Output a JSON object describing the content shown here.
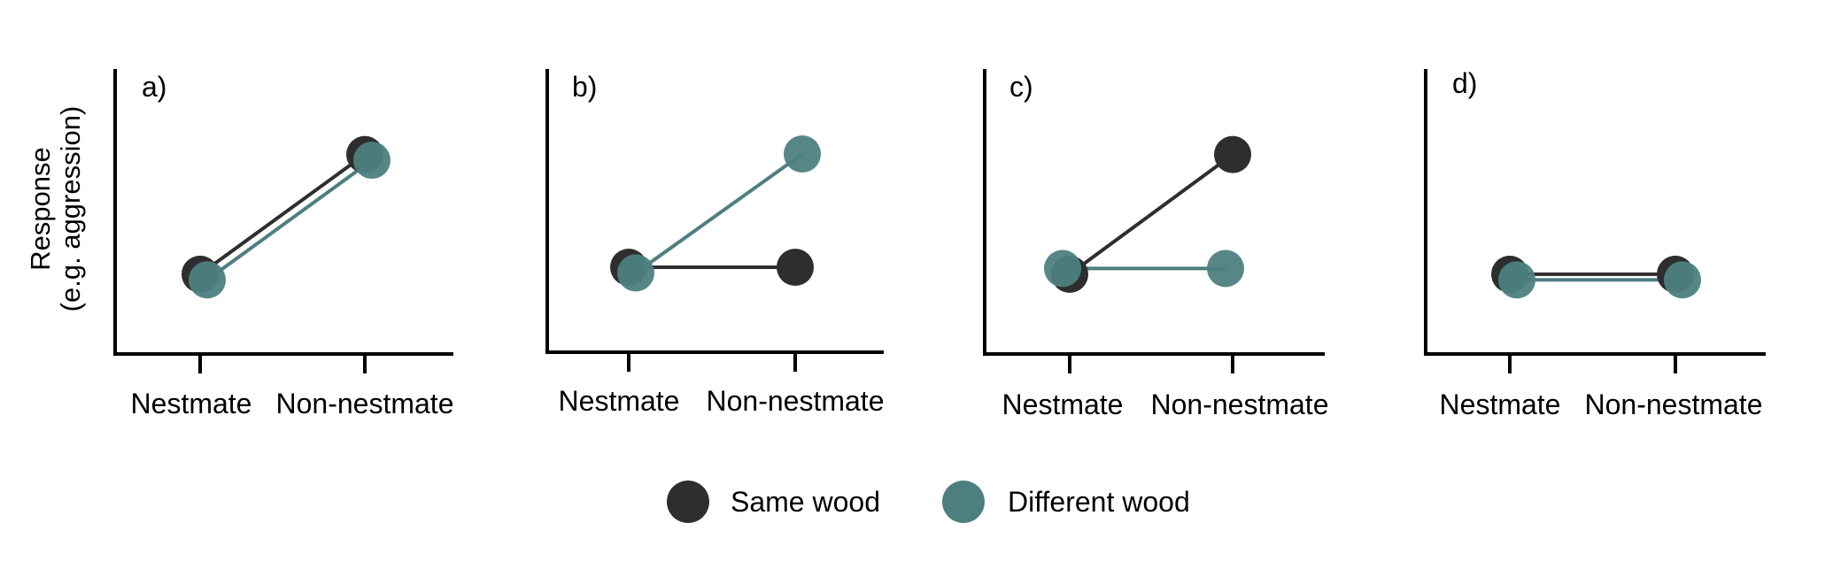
{
  "ylabel": [
    "Response",
    "(e.g. aggression)"
  ],
  "colors": {
    "same": "#2e2e2e",
    "different": "#4e7f80"
  },
  "legend": [
    {
      "key": "same",
      "label": "Same wood"
    },
    {
      "key": "different",
      "label": "Different wood"
    }
  ],
  "chart_data": [
    {
      "type": "line",
      "panel": "a)",
      "categories": [
        "Nestmate",
        "Non-nestmate"
      ],
      "ylim": [
        0,
        1
      ],
      "series": [
        {
          "name": "Same wood",
          "key": "same",
          "values": [
            0.28,
            0.7
          ]
        },
        {
          "name": "Different wood",
          "key": "different",
          "values": [
            0.26,
            0.68
          ]
        }
      ]
    },
    {
      "type": "line",
      "panel": "b)",
      "categories": [
        "Nestmate",
        "Non-nestmate"
      ],
      "ylim": [
        0,
        1
      ],
      "series": [
        {
          "name": "Same wood",
          "key": "same",
          "values": [
            0.3,
            0.3
          ]
        },
        {
          "name": "Different wood",
          "key": "different",
          "values": [
            0.28,
            0.7
          ]
        }
      ]
    },
    {
      "type": "line",
      "panel": "c)",
      "categories": [
        "Nestmate",
        "Non-nestmate"
      ],
      "ylim": [
        0,
        1
      ],
      "series": [
        {
          "name": "Same wood",
          "key": "same",
          "values": [
            0.28,
            0.7
          ]
        },
        {
          "name": "Different wood",
          "key": "different",
          "values": [
            0.3,
            0.3
          ]
        }
      ]
    },
    {
      "type": "line",
      "panel": "d)",
      "categories": [
        "Nestmate",
        "Non-nestmate"
      ],
      "ylim": [
        0,
        1
      ],
      "series": [
        {
          "name": "Same wood",
          "key": "same",
          "values": [
            0.28,
            0.28
          ]
        },
        {
          "name": "Different wood",
          "key": "different",
          "values": [
            0.26,
            0.26
          ]
        }
      ]
    }
  ]
}
